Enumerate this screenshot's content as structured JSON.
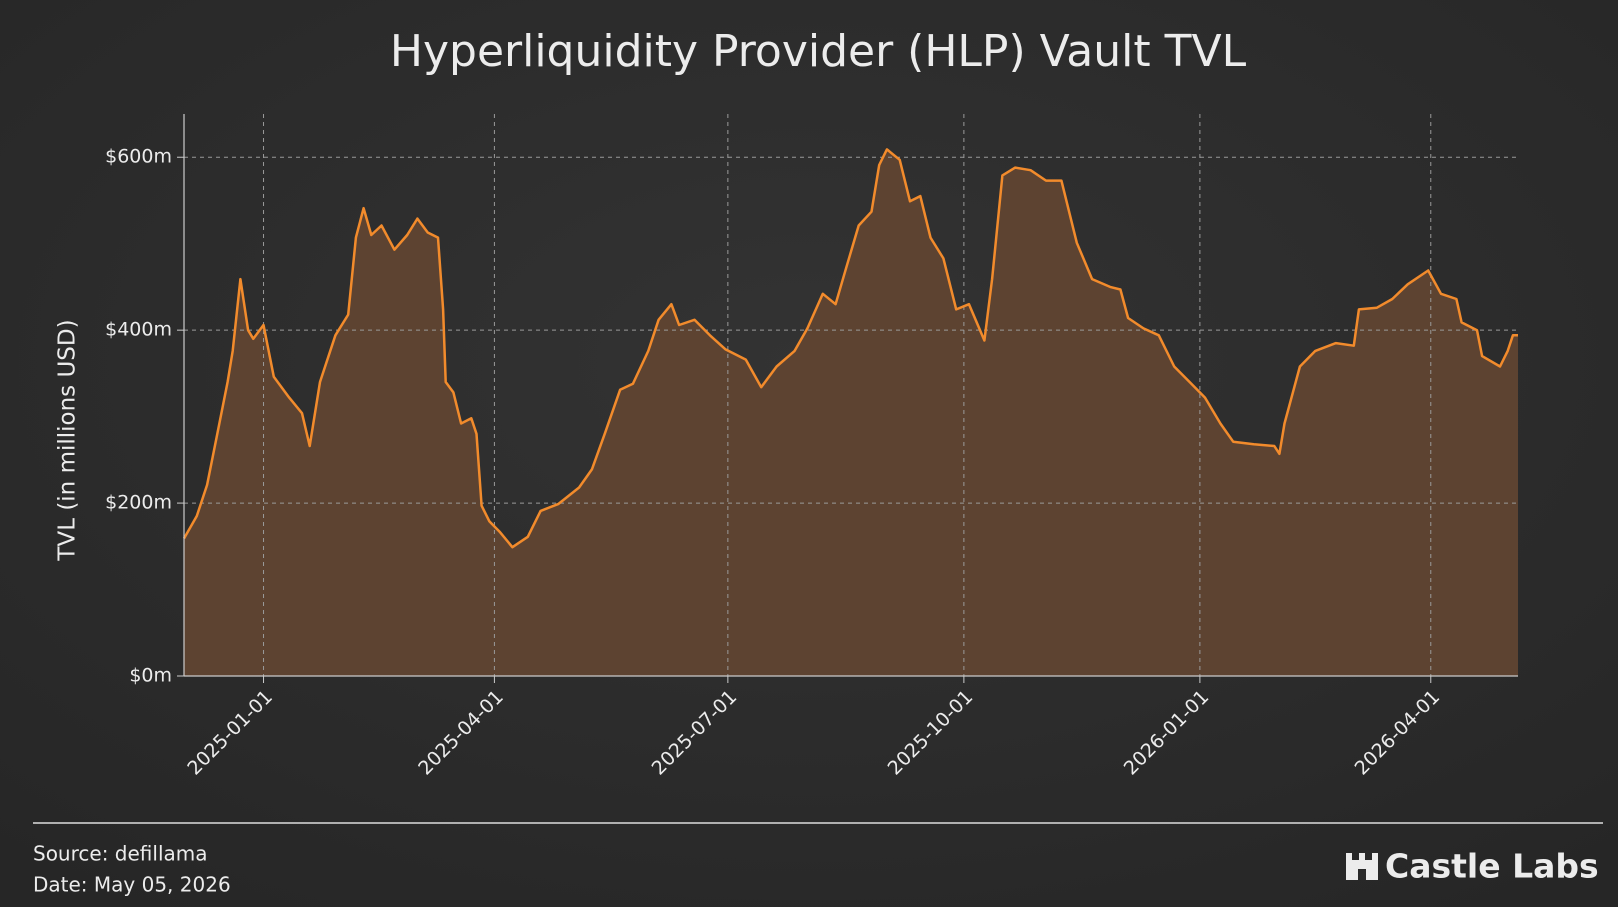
{
  "chart_data": {
    "type": "area",
    "title": "Hyperliquidity Provider (HLP) Vault TVL",
    "y_label": "TVL (in millions USD)",
    "source": "Source: defillama",
    "date_note": "Date: May 05, 2026",
    "brand": "Castle Labs",
    "color": "#f28b2c",
    "fill": "#5d4331",
    "grid": true,
    "xlim": [
      "2024-12-01",
      "2026-05-05"
    ],
    "xticks": [
      "2025-01-01",
      "2025-04-01",
      "2025-07-01",
      "2025-10-01",
      "2026-01-01",
      "2026-04-01"
    ],
    "ylim": [
      0,
      650
    ],
    "yticks": [
      {
        "value": 0,
        "label": "$0m"
      },
      {
        "value": 200,
        "label": "$200m"
      },
      {
        "value": 400,
        "label": "$400m"
      },
      {
        "value": 600,
        "label": "$600m"
      }
    ],
    "x": [
      "2024-12-01",
      "2024-12-06",
      "2024-12-10",
      "2024-12-14",
      "2024-12-18",
      "2024-12-20",
      "2024-12-23",
      "2024-12-26",
      "2024-12-28",
      "2025-01-01",
      "2025-01-05",
      "2025-01-11",
      "2025-01-16",
      "2025-01-19",
      "2025-01-23",
      "2025-01-29",
      "2025-02-03",
      "2025-02-06",
      "2025-02-09",
      "2025-02-12",
      "2025-02-16",
      "2025-02-21",
      "2025-02-26",
      "2025-03-02",
      "2025-03-06",
      "2025-03-10",
      "2025-03-12",
      "2025-03-13",
      "2025-03-16",
      "2025-03-19",
      "2025-03-23",
      "2025-03-25",
      "2025-03-27",
      "2025-03-30",
      "2025-04-03",
      "2025-04-08",
      "2025-04-14",
      "2025-04-19",
      "2025-04-26",
      "2025-05-04",
      "2025-05-09",
      "2025-05-14",
      "2025-05-20",
      "2025-05-25",
      "2025-05-31",
      "2025-06-04",
      "2025-06-09",
      "2025-06-12",
      "2025-06-18",
      "2025-06-24",
      "2025-06-30",
      "2025-07-08",
      "2025-07-14",
      "2025-07-20",
      "2025-07-27",
      "2025-08-01",
      "2025-08-07",
      "2025-08-12",
      "2025-08-16",
      "2025-08-21",
      "2025-08-26",
      "2025-08-29",
      "2025-09-01",
      "2025-09-06",
      "2025-09-10",
      "2025-09-14",
      "2025-09-18",
      "2025-09-23",
      "2025-09-28",
      "2025-10-03",
      "2025-10-09",
      "2025-10-12",
      "2025-10-16",
      "2025-10-21",
      "2025-10-27",
      "2025-11-02",
      "2025-11-08",
      "2025-11-14",
      "2025-11-20",
      "2025-11-27",
      "2025-12-01",
      "2025-12-04",
      "2025-12-10",
      "2025-12-16",
      "2025-12-22",
      "2025-12-28",
      "2026-01-03",
      "2026-01-09",
      "2026-01-14",
      "2026-01-22",
      "2026-01-30",
      "2026-02-01",
      "2026-02-03",
      "2026-02-09",
      "2026-02-15",
      "2026-02-23",
      "2026-03-02",
      "2026-03-04",
      "2026-03-11",
      "2026-03-17",
      "2026-03-23",
      "2026-03-31",
      "2026-04-05",
      "2026-04-11",
      "2026-04-13",
      "2026-04-19",
      "2026-04-21",
      "2026-04-28",
      "2026-05-01",
      "2026-05-03",
      "2026-05-05"
    ],
    "values": [
      159,
      185,
      221,
      280,
      340,
      376,
      459,
      400,
      390,
      406,
      346,
      322,
      304,
      266,
      340,
      394,
      418,
      507,
      541,
      510,
      521,
      493,
      510,
      529,
      513,
      507,
      424,
      340,
      328,
      292,
      298,
      280,
      197,
      179,
      167,
      149,
      161,
      191,
      199,
      218,
      239,
      280,
      331,
      338,
      376,
      412,
      430,
      406,
      412,
      394,
      378,
      366,
      334,
      358,
      376,
      402,
      442,
      430,
      471,
      521,
      537,
      591,
      609,
      597,
      549,
      555,
      507,
      483,
      424,
      430,
      388,
      459,
      579,
      588,
      585,
      573,
      573,
      501,
      459,
      450,
      447,
      414,
      402,
      394,
      358,
      340,
      322,
      292,
      271,
      268,
      266,
      257,
      292,
      358,
      376,
      385,
      382,
      424,
      426,
      436,
      453,
      469,
      442,
      436,
      409,
      400,
      370,
      358,
      376,
      394,
      394
    ]
  }
}
